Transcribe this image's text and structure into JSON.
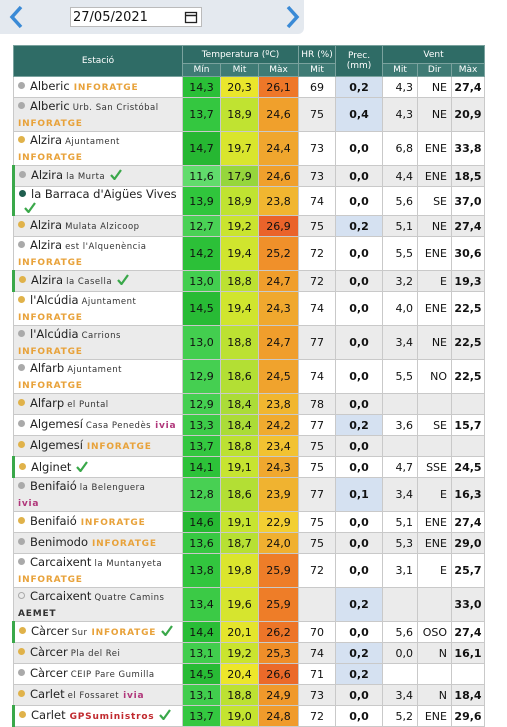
{
  "toolbar": {
    "date": "27/05/2021"
  },
  "table": {
    "header": {
      "station": "Estació",
      "temp": "Temperatura (ºC)",
      "hr": "HR (%)",
      "prec": "Prec. (mm)",
      "wind": "Vent",
      "temp_sub": [
        "Mín",
        "Mit",
        "Màx"
      ],
      "hr_sub": "Mit",
      "wind_sub": [
        "Mit",
        "Dir",
        "Màx"
      ]
    },
    "rows": [
      {
        "name": "Alberic",
        "sub": null,
        "tag": "INFORATGE",
        "tag_color": "#e8a23a",
        "dot": "#aaaaaa",
        "check": false,
        "border": false,
        "cells": [
          "14,3",
          "20,3",
          "26,1",
          "69",
          "0,2",
          "4,3",
          "NE",
          "27,4"
        ]
      },
      {
        "name": "Alberic",
        "sub": "Urb. San Cristóbal",
        "tag": "INFORATGE",
        "tag_color": "#e8a23a",
        "dot": "#aaaaaa",
        "check": false,
        "border": false,
        "cells": [
          "13,7",
          "18,9",
          "24,6",
          "75",
          "0,4",
          "4,3",
          "NE",
          "20,9"
        ]
      },
      {
        "name": "Alzira",
        "sub": "Ajuntament",
        "tag": "INFORATGE",
        "tag_color": "#e8a23a",
        "dot": "#e0b24a",
        "check": false,
        "border": false,
        "cells": [
          "14,7",
          "19,7",
          "24,4",
          "73",
          "0,0",
          "6,8",
          "ENE",
          "33,8"
        ]
      },
      {
        "name": "Alzira",
        "sub": "la Murta",
        "tag": null,
        "tag_color": null,
        "dot": "#aaaaaa",
        "check": true,
        "border": true,
        "cells": [
          "11,6",
          "17,9",
          "24,6",
          "73",
          "0,0",
          "4,4",
          "ENE",
          "18,5"
        ]
      },
      {
        "name": "la Barraca d'Aigües Vives",
        "sub": null,
        "tag": null,
        "tag_color": null,
        "dot": "#1f5e4f",
        "check": true,
        "border": true,
        "cells": [
          "13,9",
          "18,9",
          "23,8",
          "74",
          "0,0",
          "5,6",
          "SE",
          "37,0"
        ]
      },
      {
        "name": "Alzira",
        "sub": "Mulata Alzicoop",
        "tag": null,
        "tag_color": null,
        "dot": "#e0b24a",
        "check": false,
        "border": false,
        "cells": [
          "12,7",
          "19,2",
          "26,9",
          "75",
          "0,2",
          "5,1",
          "NE",
          "27,4"
        ]
      },
      {
        "name": "Alzira",
        "sub": "est l'Alquenència",
        "tag": "INFORATGE",
        "tag_color": "#e8a23a",
        "dot": "#aaaaaa",
        "check": false,
        "border": false,
        "cells": [
          "14,2",
          "19,4",
          "25,2",
          "72",
          "0,0",
          "5,5",
          "ENE",
          "30,6"
        ]
      },
      {
        "name": "Alzira",
        "sub": "la Casella",
        "tag": null,
        "tag_color": null,
        "dot": "#e0b24a",
        "check": true,
        "border": true,
        "cells": [
          "13,0",
          "18,8",
          "24,7",
          "72",
          "0,0",
          "3,2",
          "E",
          "19,3"
        ]
      },
      {
        "name": "l'Alcúdia",
        "sub": "Ajuntament",
        "tag": "INFORATGE",
        "tag_color": "#e8a23a",
        "dot": "#e0b24a",
        "check": false,
        "border": false,
        "cells": [
          "14,5",
          "19,4",
          "24,3",
          "74",
          "0,0",
          "4,0",
          "ENE",
          "22,5"
        ]
      },
      {
        "name": "l'Alcúdia",
        "sub": "Carrions",
        "tag": "INFORATGE",
        "tag_color": "#e8a23a",
        "dot": "#aaaaaa",
        "check": false,
        "border": false,
        "cells": [
          "13,0",
          "18,8",
          "24,7",
          "77",
          "0,0",
          "3,4",
          "NE",
          "22,5"
        ]
      },
      {
        "name": "Alfarb",
        "sub": "Ajuntament",
        "tag": "INFORATGE",
        "tag_color": "#e8a23a",
        "dot": "#aaaaaa",
        "check": false,
        "border": false,
        "cells": [
          "12,9",
          "18,6",
          "24,5",
          "74",
          "0,0",
          "5,5",
          "NO",
          "22,5"
        ]
      },
      {
        "name": "Alfarp",
        "sub": "el Puntal",
        "tag": null,
        "tag_color": null,
        "dot": "#e0b24a",
        "check": false,
        "border": false,
        "cells": [
          "12,9",
          "18,4",
          "23,8",
          "78",
          "0,0",
          null,
          null,
          null
        ]
      },
      {
        "name": "Algemesí",
        "sub": "Casa Penedès",
        "tag": "ivia",
        "tag_color": "#b0367a",
        "dot": "#aaaaaa",
        "check": false,
        "border": false,
        "cells": [
          "13,3",
          "18,4",
          "24,2",
          "77",
          "0,2",
          "3,6",
          "SE",
          "15,7"
        ]
      },
      {
        "name": "Algemesí",
        "sub": null,
        "tag": "INFORATGE",
        "tag_color": "#e8a23a",
        "dot": "#e0b24a",
        "check": false,
        "border": false,
        "cells": [
          "13,7",
          "18,8",
          "23,4",
          "75",
          "0,0",
          null,
          null,
          null
        ]
      },
      {
        "name": "Alginet",
        "sub": null,
        "tag": null,
        "tag_color": null,
        "dot": "#e0b24a",
        "check": true,
        "border": true,
        "cells": [
          "14,1",
          "19,1",
          "24,3",
          "75",
          "0,0",
          "4,7",
          "SSE",
          "24,5"
        ]
      },
      {
        "name": "Benifaió",
        "sub": "la Belenguera",
        "tag": "ivia",
        "tag_color": "#b0367a",
        "dot": "#aaaaaa",
        "check": false,
        "border": false,
        "cells": [
          "12,8",
          "18,6",
          "23,9",
          "77",
          "0,1",
          "3,4",
          "E",
          "16,3"
        ]
      },
      {
        "name": "Benifaió",
        "sub": null,
        "tag": "INFORATGE",
        "tag_color": "#e8a23a",
        "dot": "#e0b24a",
        "check": false,
        "border": false,
        "cells": [
          "14,6",
          "19,1",
          "22,9",
          "75",
          "0,0",
          "5,1",
          "ENE",
          "27,4"
        ]
      },
      {
        "name": "Benimodo",
        "sub": null,
        "tag": "INFORATGE",
        "tag_color": "#e8a23a",
        "dot": "#aaaaaa",
        "check": false,
        "border": false,
        "cells": [
          "13,6",
          "18,7",
          "24,0",
          "75",
          "0,0",
          "5,3",
          "ENE",
          "29,0"
        ]
      },
      {
        "name": "Carcaixent",
        "sub": "la Muntanyeta",
        "tag": "INFORATGE",
        "tag_color": "#e8a23a",
        "dot": "#aaaaaa",
        "check": false,
        "border": false,
        "cells": [
          "13,8",
          "19,8",
          "25,9",
          "72",
          "0,0",
          "3,1",
          "E",
          "25,7"
        ]
      },
      {
        "name": "Carcaixent",
        "sub": "Quatre Camins",
        "tag": "AEMET",
        "tag_color": "#333333",
        "dot": "none",
        "check": false,
        "border": false,
        "cells": [
          "13,4",
          "19,6",
          "25,9",
          null,
          "0,2",
          null,
          null,
          "33,0"
        ]
      },
      {
        "name": "Càrcer",
        "sub": "Sur",
        "tag": "INFORATGE",
        "tag_color": "#e8a23a",
        "dot": "#e0b24a",
        "check": true,
        "border": true,
        "cells": [
          "14,4",
          "20,1",
          "26,2",
          "70",
          "0,0",
          "5,6",
          "OSO",
          "27,4"
        ]
      },
      {
        "name": "Càrcer",
        "sub": "Pla del Rei",
        "tag": null,
        "tag_color": null,
        "dot": "#e0b24a",
        "check": false,
        "border": false,
        "cells": [
          "13,1",
          "19,2",
          "25,3",
          "74",
          "0,2",
          "0,0",
          "N",
          "16,1"
        ]
      },
      {
        "name": "Càrcer",
        "sub": "CEIP Pare Gumilla",
        "tag": null,
        "tag_color": null,
        "dot": "#aaaaaa",
        "check": false,
        "border": false,
        "cells": [
          "14,5",
          "20,4",
          "26,6",
          "71",
          "0,2",
          null,
          null,
          null
        ]
      },
      {
        "name": "Carlet",
        "sub": "el Fossaret",
        "tag": "ivia",
        "tag_color": "#b0367a",
        "dot": "#e0b24a",
        "check": false,
        "border": false,
        "cells": [
          "13,1",
          "18,8",
          "24,9",
          "73",
          "0,0",
          "3,4",
          "N",
          "18,4"
        ]
      },
      {
        "name": "Carlet",
        "sub": null,
        "tag": "GPSuministros",
        "tag_color": "#c0282d",
        "dot": "#e0b24a",
        "check": true,
        "border": true,
        "cells": [
          "13,7",
          "19,0",
          "24,8",
          "72",
          "0,0",
          "5,2",
          "ENE",
          "29,6"
        ]
      }
    ]
  }
}
